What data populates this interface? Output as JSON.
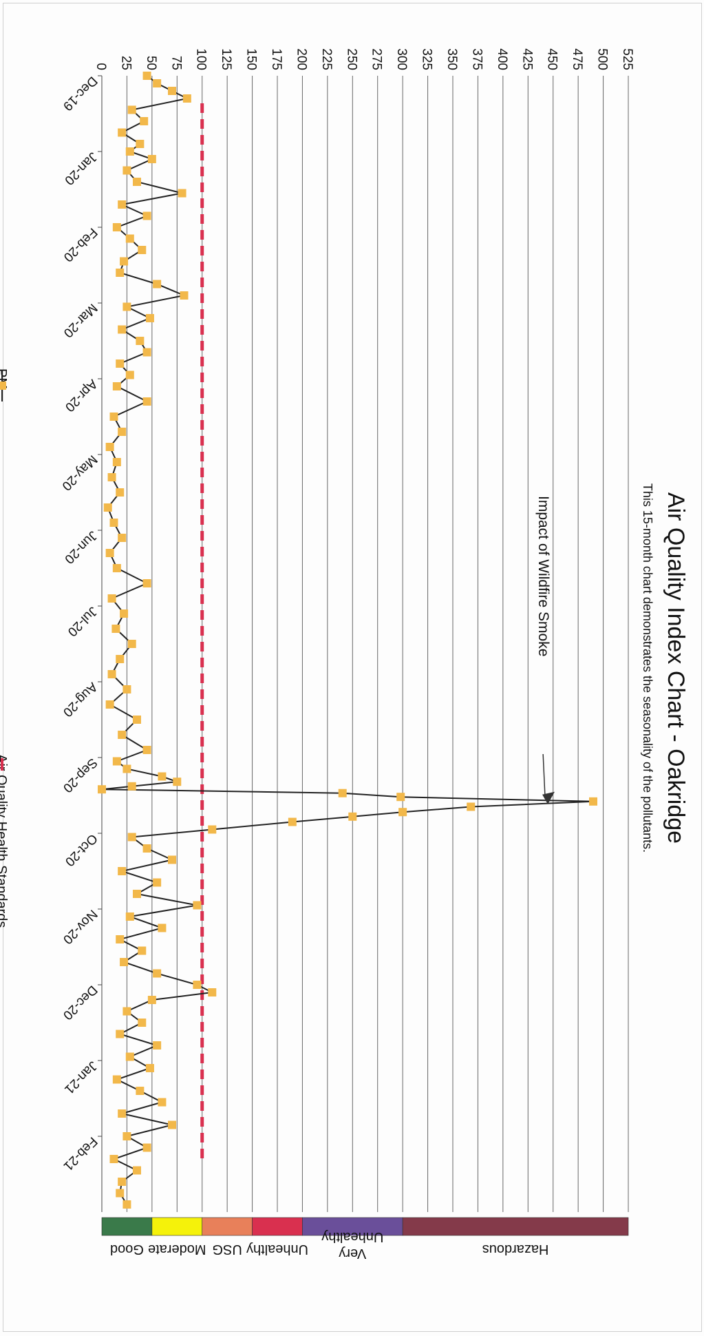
{
  "chart_data": {
    "type": "line",
    "title": "Air Quality Index Chart - Oakridge",
    "subtitle": "This 15-month chart demonstrates the seasonality of the pollutants.",
    "ylabel": "",
    "xlabel": "",
    "ylim": [
      0,
      525
    ],
    "y_ticks": [
      0,
      25,
      50,
      75,
      100,
      125,
      150,
      175,
      200,
      225,
      250,
      275,
      300,
      325,
      350,
      375,
      400,
      425,
      450,
      475,
      500,
      525
    ],
    "x_tick_labels": [
      "Dec-19",
      "Jan-20",
      "Feb-20",
      "Mar-20",
      "Apr-20",
      "May-20",
      "Jun-20",
      "Jul-20",
      "Aug-20",
      "Sep-20",
      "Oct-20",
      "Nov-20",
      "Dec-20",
      "Jan-21",
      "Feb-21"
    ],
    "grid": true,
    "legend_position": "bottom",
    "annotation": "Impact of Wildfire Smoke",
    "series": [
      {
        "name": "PM",
        "color": "#f2b84a",
        "line_color": "#222222",
        "x_months": [
          0,
          0.1,
          0.2,
          0.3,
          0.45,
          0.6,
          0.75,
          0.9,
          1.0,
          1.1,
          1.25,
          1.4,
          1.55,
          1.7,
          1.85,
          2.0,
          2.15,
          2.3,
          2.45,
          2.6,
          2.75,
          2.9,
          3.05,
          3.2,
          3.35,
          3.5,
          3.65,
          3.8,
          3.95,
          4.1,
          4.3,
          4.5,
          4.7,
          4.9,
          5.1,
          5.3,
          5.5,
          5.7,
          5.9,
          6.1,
          6.3,
          6.5,
          6.7,
          6.9,
          7.1,
          7.3,
          7.5,
          7.7,
          7.9,
          8.1,
          8.3,
          8.5,
          8.7,
          8.9,
          9.05,
          9.15,
          9.25,
          9.32,
          9.38,
          9.42,
          9.47,
          9.52,
          9.58,
          9.65,
          9.72,
          9.78,
          9.85,
          9.95,
          10.05,
          10.2,
          10.35,
          10.5,
          10.65,
          10.8,
          10.95,
          11.1,
          11.25,
          11.4,
          11.55,
          11.7,
          11.85,
          12.0,
          12.1,
          12.2,
          12.35,
          12.5,
          12.65,
          12.8,
          12.95,
          13.1,
          13.25,
          13.4,
          13.55,
          13.7,
          13.85,
          14.0,
          14.15,
          14.3,
          14.45,
          14.6,
          14.75,
          14.9
        ],
        "values": [
          45,
          55,
          70,
          85,
          30,
          42,
          20,
          38,
          28,
          50,
          25,
          35,
          80,
          20,
          45,
          15,
          28,
          40,
          22,
          18,
          55,
          82,
          25,
          48,
          20,
          38,
          45,
          18,
          28,
          15,
          45,
          12,
          20,
          8,
          15,
          10,
          18,
          6,
          12,
          20,
          8,
          15,
          45,
          10,
          22,
          14,
          30,
          18,
          10,
          25,
          8,
          35,
          20,
          45,
          15,
          25,
          60,
          75,
          30,
          0,
          240,
          298,
          490,
          368,
          300,
          250,
          190,
          110,
          30,
          45,
          70,
          20,
          55,
          35,
          95,
          28,
          60,
          18,
          40,
          22,
          55,
          95,
          110,
          50,
          25,
          40,
          18,
          55,
          28,
          48,
          15,
          38,
          60,
          20,
          70,
          25,
          45,
          12,
          35,
          20,
          18,
          25
        ]
      }
    ],
    "reference_line": {
      "name": "Air Quality Health Standards",
      "value": 100,
      "color": "#d9304f"
    },
    "categories_band": [
      {
        "label": "Good",
        "from": 0,
        "to": 50,
        "color": "#3a7a4a"
      },
      {
        "label": "Moderate",
        "from": 50,
        "to": 100,
        "color": "#f5f20a"
      },
      {
        "label": "USG",
        "from": 100,
        "to": 150,
        "color": "#e8805a"
      },
      {
        "label": "Unhealthy",
        "from": 150,
        "to": 200,
        "color": "#d9304f"
      },
      {
        "label": "Very Unhealthy",
        "from": 200,
        "to": 300,
        "color": "#6a4f9a"
      },
      {
        "label": "Hazardous",
        "from": 300,
        "to": 525,
        "color": "#843a4a"
      }
    ]
  },
  "legend": {
    "pm_label": "PM",
    "standard_label": "Air Quality Health Standards"
  }
}
